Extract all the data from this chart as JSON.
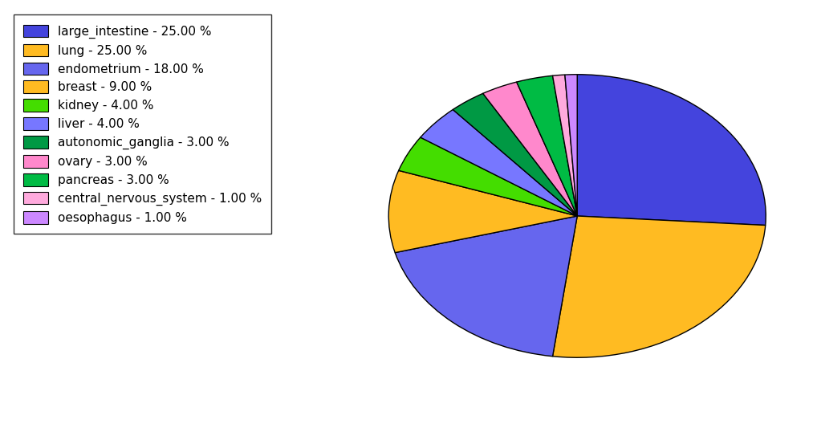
{
  "labels": [
    "large_intestine",
    "lung",
    "endometrium",
    "breast",
    "kidney",
    "liver",
    "autonomic_ganglia",
    "ovary",
    "pancreas",
    "central_nervous_system",
    "oesophagus"
  ],
  "values": [
    25.0,
    25.0,
    18.0,
    9.0,
    4.0,
    4.0,
    3.0,
    3.0,
    3.0,
    1.0,
    1.0
  ],
  "colors": [
    "#4444dd",
    "#ffbb22",
    "#6666ee",
    "#ffbb22",
    "#44dd00",
    "#7777ff",
    "#009944",
    "#ff88cc",
    "#00bb44",
    "#ffaadd",
    "#cc88ff"
  ],
  "legend_labels": [
    "large_intestine - 25.00 %",
    "lung - 25.00 %",
    "endometrium - 18.00 %",
    "breast - 9.00 %",
    "kidney - 4.00 %",
    "liver - 4.00 %",
    "autonomic_ganglia - 3.00 %",
    "ovary - 3.00 %",
    "pancreas - 3.00 %",
    "central_nervous_system - 1.00 %",
    "oesophagus - 1.00 %"
  ],
  "startangle": 90,
  "figsize": [
    10.13,
    5.38
  ],
  "dpi": 100
}
